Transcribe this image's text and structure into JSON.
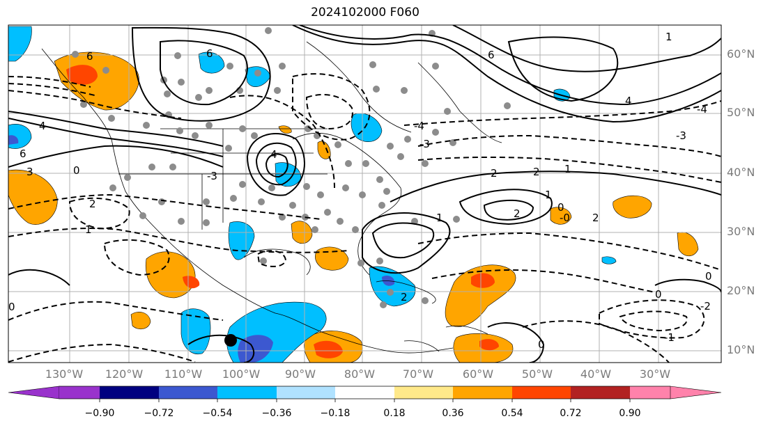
{
  "title": "2024102000 F060",
  "colors": {
    "background": "#ffffff",
    "frame": "#000000",
    "grid": "#b0b0b0",
    "axis_label": "#7a7a7a",
    "contour": "#000000",
    "land_gray": "#8c8c8c"
  },
  "map": {
    "latitude_labels": [
      "60°N",
      "50°N",
      "40°N",
      "30°N",
      "20°N",
      "10°N"
    ],
    "longitude_labels": [
      "130°W",
      "120°W",
      "110°W",
      "100°W",
      "90°W",
      "80°W",
      "70°W",
      "60°W",
      "50°W",
      "40°W",
      "30°W"
    ],
    "shown_contour_values": [
      "-1",
      "-2",
      "-3",
      "-4",
      "0",
      "1",
      "2",
      "4",
      "6"
    ],
    "marker": "black-dot"
  },
  "colorbar": {
    "tick_labels": [
      "−0.90",
      "−0.72",
      "−0.54",
      "−0.36",
      "−0.18",
      "0.18",
      "0.36",
      "0.54",
      "0.72",
      "0.90"
    ],
    "segment_colors": [
      "#9932cc",
      "#000080",
      "#3c58d0",
      "#00bfff",
      "#b0e2ff",
      "#ffffff",
      "#ffe98a",
      "#ffa500",
      "#ff4500",
      "#b22222",
      "#ff82ab"
    ],
    "extend": "both"
  }
}
